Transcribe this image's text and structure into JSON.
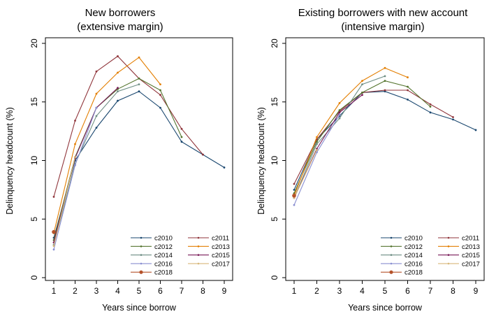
{
  "shared_ylabel": "Delinquency headcount (%)",
  "colors": {
    "c2010": "#1a476f",
    "c2011": "#90353b",
    "c2012": "#55752f",
    "c2013": "#e37e00",
    "c2014": "#6e8e84",
    "c2015": "#7b1e5a",
    "c2016": "#8a8fd1",
    "c2017": "#d8b87a",
    "c2018": "#b5522a"
  },
  "legend_order": [
    "c2010",
    "c2011",
    "c2012",
    "c2013",
    "c2014",
    "c2015",
    "c2016",
    "c2017",
    "c2018"
  ],
  "chart_data": [
    {
      "type": "line",
      "title": "New borrowers",
      "subtitle": "(extensive margin)",
      "xlabel": "Years since borrow",
      "ylabel": "Delinquency headcount (%)",
      "xlim": [
        1,
        9
      ],
      "ylim": [
        0,
        20
      ],
      "xticks": [
        "1",
        "2",
        "3",
        "4",
        "5",
        "6",
        "7",
        "8",
        "9"
      ],
      "yticks": [
        "0",
        "5",
        "10",
        "15",
        "20"
      ],
      "legend_position": "bottom-right",
      "series": [
        {
          "name": "c2010",
          "x": [
            1,
            2,
            3,
            4,
            5,
            6,
            7,
            8,
            9
          ],
          "values": [
            3.4,
            10.0,
            12.8,
            15.1,
            15.9,
            14.5,
            11.6,
            10.5,
            9.4
          ]
        },
        {
          "name": "c2011",
          "x": [
            1,
            2,
            3,
            4,
            5,
            6,
            7,
            8
          ],
          "values": [
            6.9,
            13.4,
            17.6,
            18.9,
            17.0,
            15.6,
            12.7,
            10.5
          ]
        },
        {
          "name": "c2012",
          "x": [
            1,
            2,
            3,
            4,
            5,
            6,
            7
          ],
          "values": [
            3.2,
            10.3,
            14.5,
            16.1,
            17.0,
            16.0,
            12.0
          ]
        },
        {
          "name": "c2013",
          "x": [
            1,
            2,
            3,
            4,
            5,
            6
          ],
          "values": [
            3.8,
            11.4,
            15.7,
            17.5,
            18.8,
            16.5
          ]
        },
        {
          "name": "c2014",
          "x": [
            1,
            2,
            3,
            4,
            5
          ],
          "values": [
            2.8,
            9.7,
            13.8,
            15.9,
            16.5
          ]
        },
        {
          "name": "c2015",
          "x": [
            1,
            2,
            3,
            4
          ],
          "values": [
            3.0,
            10.2,
            14.5,
            16.2
          ]
        },
        {
          "name": "c2016",
          "x": [
            1,
            2,
            3
          ],
          "values": [
            2.4,
            9.6,
            14.5
          ]
        },
        {
          "name": "c2017",
          "x": [
            1,
            2
          ],
          "values": [
            2.7,
            10.3
          ]
        },
        {
          "name": "c2018",
          "x": [
            1
          ],
          "values": [
            3.9
          ]
        }
      ]
    },
    {
      "type": "line",
      "title": "Existing borrowers with new account",
      "subtitle": "(intensive margin)",
      "xlabel": "Years since borrow",
      "ylabel": "Delinquency headcount (%)",
      "xlim": [
        1,
        9
      ],
      "ylim": [
        0,
        20
      ],
      "xticks": [
        "1",
        "2",
        "3",
        "4",
        "5",
        "6",
        "7",
        "8",
        "9"
      ],
      "yticks": [
        "0",
        "5",
        "10",
        "15",
        "20"
      ],
      "legend_position": "bottom-right",
      "series": [
        {
          "name": "c2010",
          "x": [
            1,
            2,
            3,
            4,
            5,
            6,
            7,
            8,
            9
          ],
          "values": [
            7.5,
            11.8,
            13.8,
            15.8,
            15.9,
            15.2,
            14.1,
            13.5,
            12.6
          ]
        },
        {
          "name": "c2011",
          "x": [
            1,
            2,
            3,
            4,
            5,
            6,
            7,
            8
          ],
          "values": [
            8.0,
            11.8,
            14.2,
            15.8,
            16.0,
            16.0,
            14.8,
            13.7
          ]
        },
        {
          "name": "c2012",
          "x": [
            1,
            2,
            3,
            4,
            5,
            6,
            7
          ],
          "values": [
            7.2,
            11.6,
            14.3,
            15.8,
            16.8,
            16.3,
            14.6
          ]
        },
        {
          "name": "c2013",
          "x": [
            1,
            2,
            3,
            4,
            5,
            6
          ],
          "values": [
            7.0,
            12.0,
            14.9,
            16.8,
            17.9,
            17.1
          ]
        },
        {
          "name": "c2014",
          "x": [
            1,
            2,
            3,
            4,
            5
          ],
          "values": [
            6.8,
            11.4,
            13.6,
            16.5,
            17.2
          ]
        },
        {
          "name": "c2015",
          "x": [
            1,
            2,
            3,
            4
          ],
          "values": [
            6.8,
            11.0,
            14.1,
            15.6
          ]
        },
        {
          "name": "c2016",
          "x": [
            1,
            2,
            3
          ],
          "values": [
            6.2,
            10.7,
            13.9
          ]
        },
        {
          "name": "c2017",
          "x": [
            1,
            2
          ],
          "values": [
            6.8,
            10.9
          ]
        },
        {
          "name": "c2018",
          "x": [
            1
          ],
          "values": [
            7.0
          ]
        }
      ]
    }
  ]
}
